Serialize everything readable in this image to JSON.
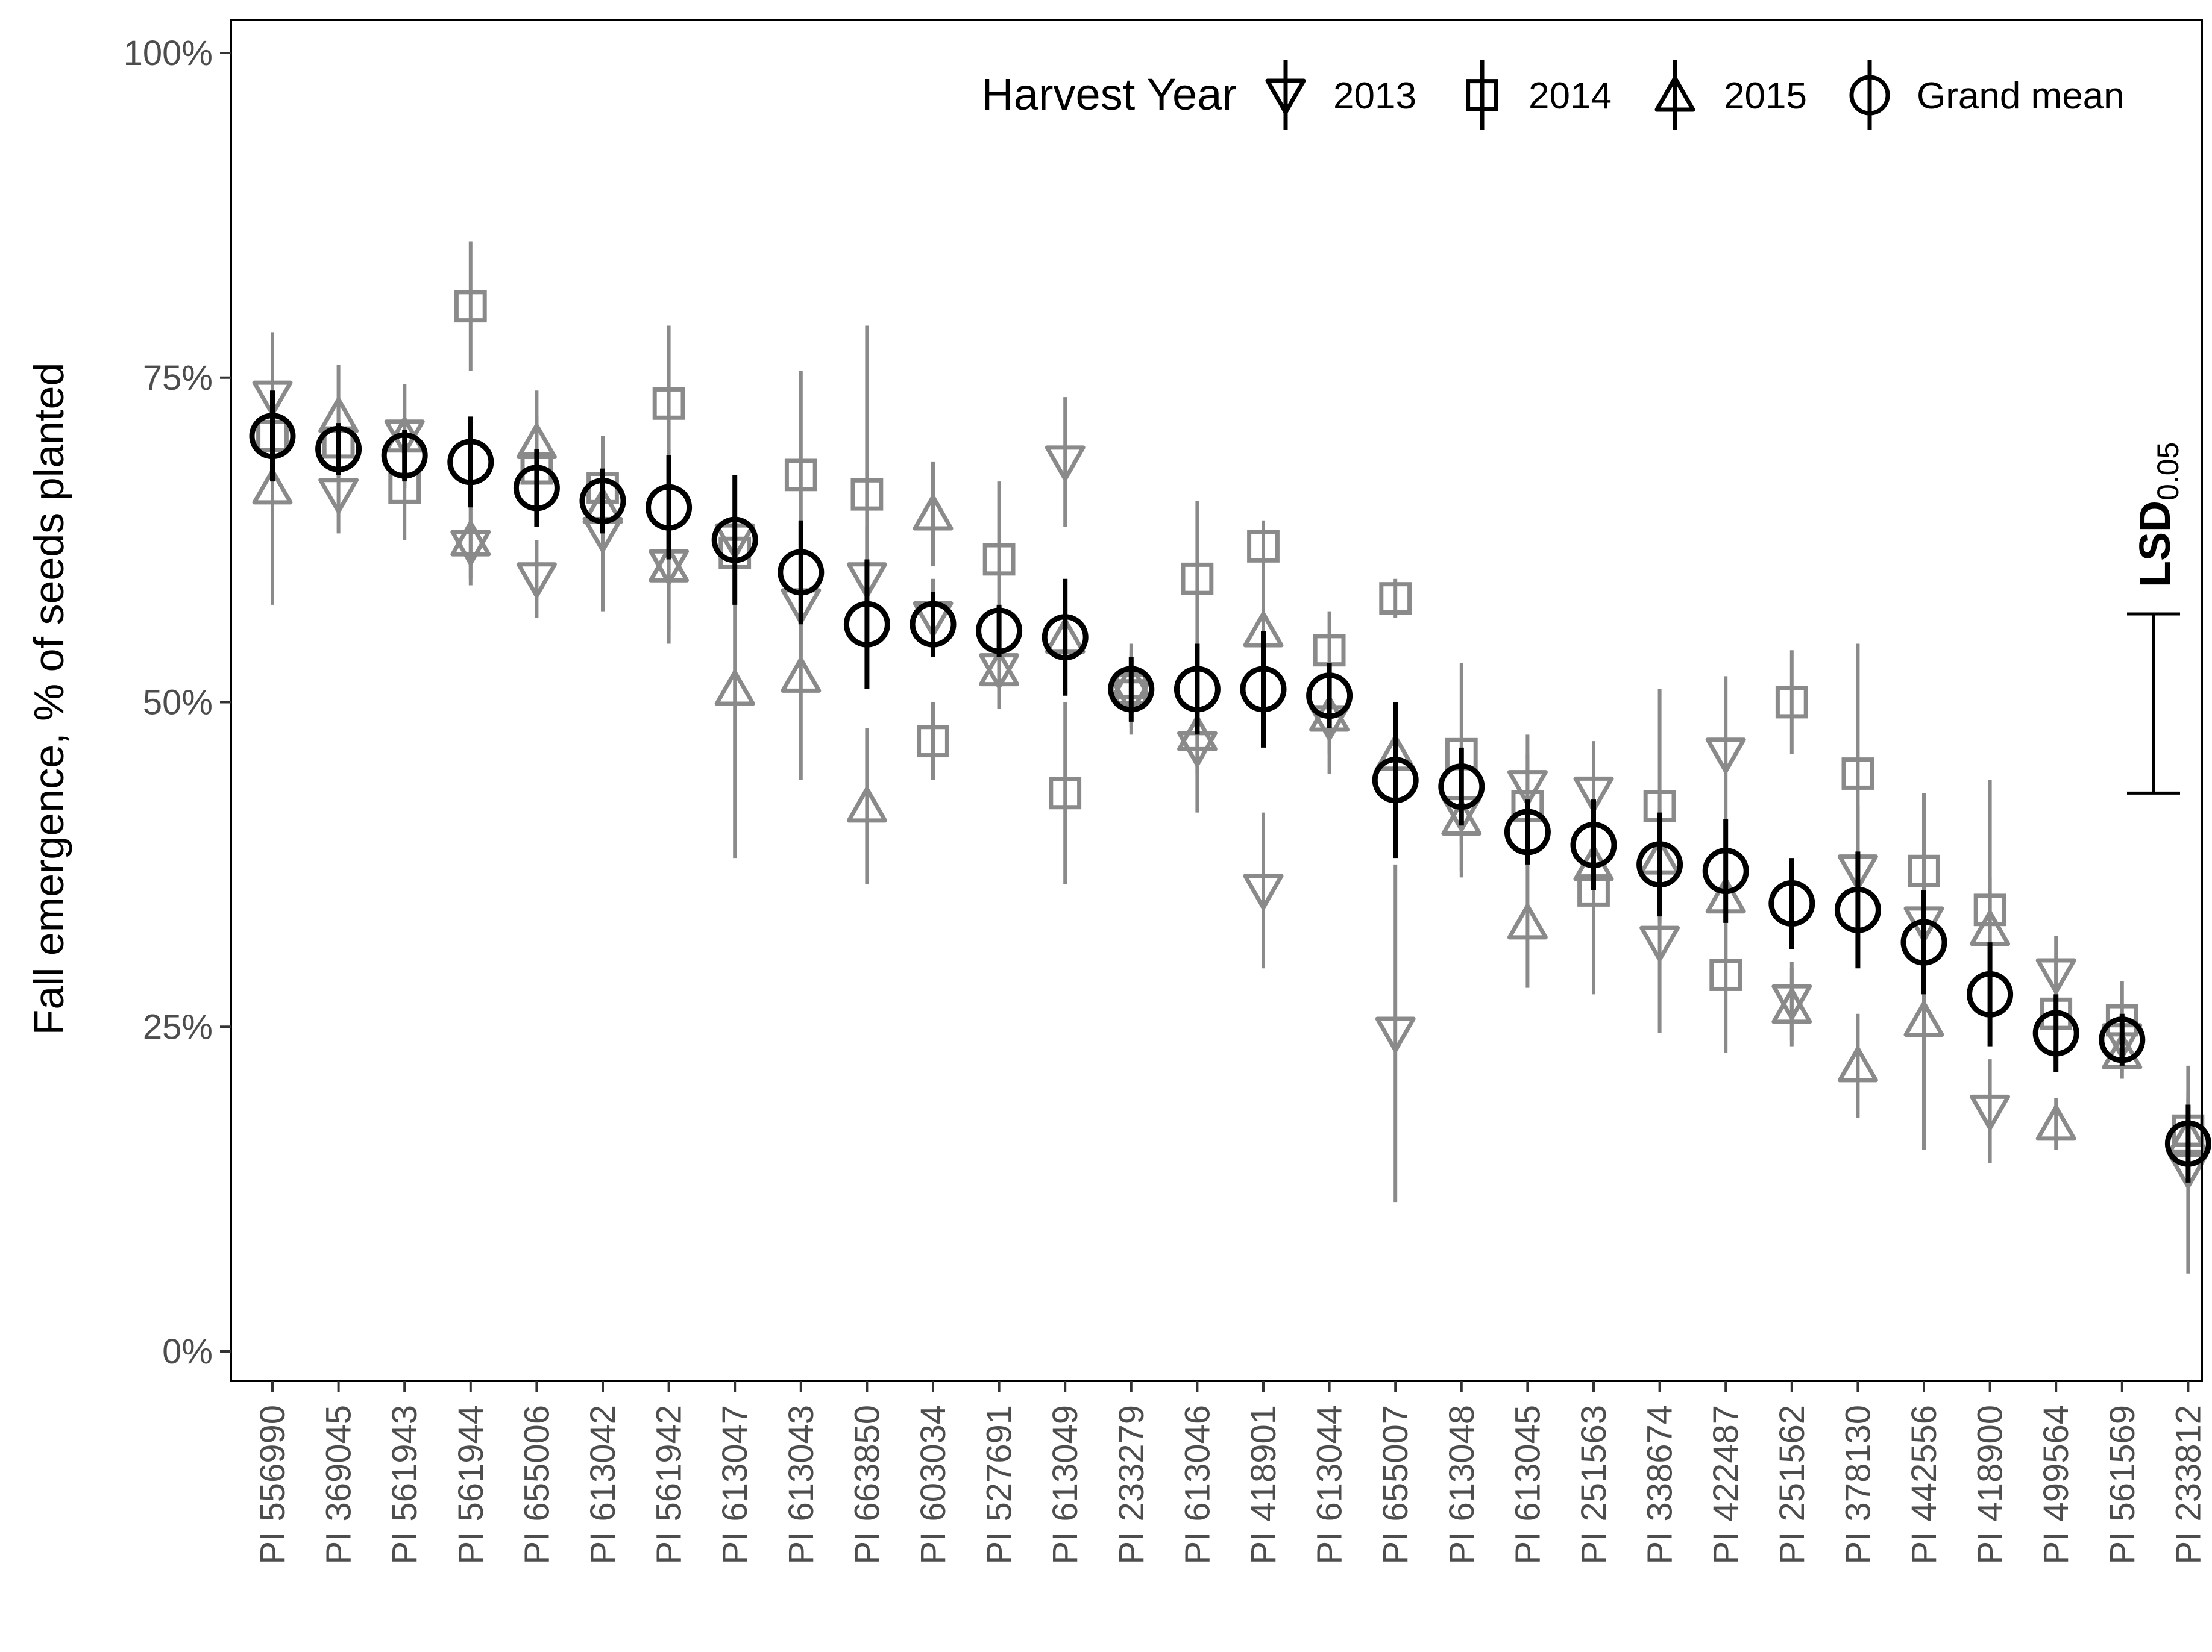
{
  "chart_data": {
    "type": "scatter",
    "ylabel": "Fall emergence, % of seeds planted",
    "xlabel": "",
    "ylim": [
      0,
      100
    ],
    "yticks": [
      "0%",
      "25%",
      "50%",
      "75%",
      "100%"
    ],
    "grid": false,
    "legend": {
      "title": "Harvest Year",
      "placement": "top-right",
      "entries": [
        "2013",
        "2014",
        "2015",
        "Grand mean"
      ]
    },
    "lsd": {
      "label": "LSD",
      "subscript": "0.05",
      "low": 43,
      "high": 56.8
    },
    "categories": [
      "PI 556990",
      "PI 369045",
      "PI 561943",
      "PI 561944",
      "PI 655006",
      "PI 613042",
      "PI 561942",
      "PI 613047",
      "PI 613043",
      "PI 663850",
      "PI 603034",
      "PI 527691",
      "PI 613049",
      "PI 233279",
      "PI 613046",
      "PI 418901",
      "PI 613044",
      "PI 655007",
      "PI 613048",
      "PI 613045",
      "PI 251563",
      "PI 338674",
      "PI 422487",
      "PI 251562",
      "PI 378130",
      "PI 442556",
      "PI 418900",
      "PI 499564",
      "PI 561569",
      "PI 233812"
    ],
    "series": [
      {
        "name": "2013",
        "color": "#8a8a8a",
        "values": [
          73.5,
          66,
          70.5,
          62,
          59.5,
          63,
          60.5,
          62.5,
          57.5,
          59.5,
          56.5,
          52.5,
          68.5,
          50.5,
          46.5,
          35.5,
          48.5,
          24.5,
          41.5,
          43.5,
          43,
          31.5,
          46,
          27,
          37,
          33,
          18.5,
          29,
          24,
          14
        ],
        "err": [
          5,
          3,
          4,
          3,
          3,
          6,
          5,
          5,
          4,
          4,
          3,
          3,
          5,
          3,
          5,
          6,
          4,
          13,
          5,
          4,
          4,
          7,
          6,
          3,
          5,
          4,
          4,
          3,
          2,
          8
        ]
      },
      {
        "name": "2014",
        "color": "#8a8a8a",
        "values": [
          70.5,
          70,
          66.5,
          80.5,
          68,
          66.5,
          73,
          61.5,
          67.5,
          66,
          47,
          61,
          43,
          51,
          59.5,
          62,
          54,
          58,
          46,
          42,
          35.5,
          42,
          29,
          50,
          44.5,
          37,
          34,
          26,
          25.5,
          17
        ],
        "err": [
          4,
          3,
          4,
          5,
          4,
          4,
          6,
          4,
          8,
          13,
          3,
          6,
          7,
          3,
          6,
          2,
          3,
          1.5,
          7,
          4,
          8,
          9,
          6,
          4,
          10,
          6,
          10,
          4,
          3,
          3
        ]
      },
      {
        "name": "2015",
        "color": "#8a8a8a",
        "values": [
          66.5,
          72,
          70.5,
          62.5,
          70,
          65,
          60.5,
          51,
          52,
          42,
          64.5,
          52.5,
          55,
          51.5,
          47.5,
          55.5,
          49,
          46,
          41,
          33,
          37.5,
          38,
          35,
          26.5,
          22,
          25.5,
          32.5,
          17.5,
          23,
          16.5
        ],
        "err": [
          9,
          4,
          4,
          3,
          4,
          4,
          6,
          13,
          8,
          6,
          4,
          3,
          3,
          3,
          3,
          6,
          3,
          4,
          4,
          5,
          4,
          5,
          5,
          3,
          4,
          10,
          4,
          2,
          2,
          3
        ]
      },
      {
        "name": "Grand mean",
        "color": "#000000",
        "values": [
          70.5,
          69.5,
          69,
          68.5,
          66.5,
          65.5,
          65,
          62.5,
          60,
          56,
          56,
          55.5,
          55,
          51,
          51,
          51,
          50.5,
          44,
          43.5,
          40,
          39,
          37.5,
          37,
          34.5,
          34,
          31.5,
          27.5,
          24.5,
          24,
          16
        ],
        "err": [
          3.5,
          2,
          2,
          3.5,
          3,
          2.5,
          4,
          5,
          4,
          5,
          2.5,
          2,
          4.5,
          2.5,
          3.5,
          4.5,
          2.5,
          6,
          3,
          2.5,
          3.5,
          4,
          4,
          3.5,
          4.5,
          4,
          4,
          3,
          2,
          3
        ]
      }
    ]
  }
}
